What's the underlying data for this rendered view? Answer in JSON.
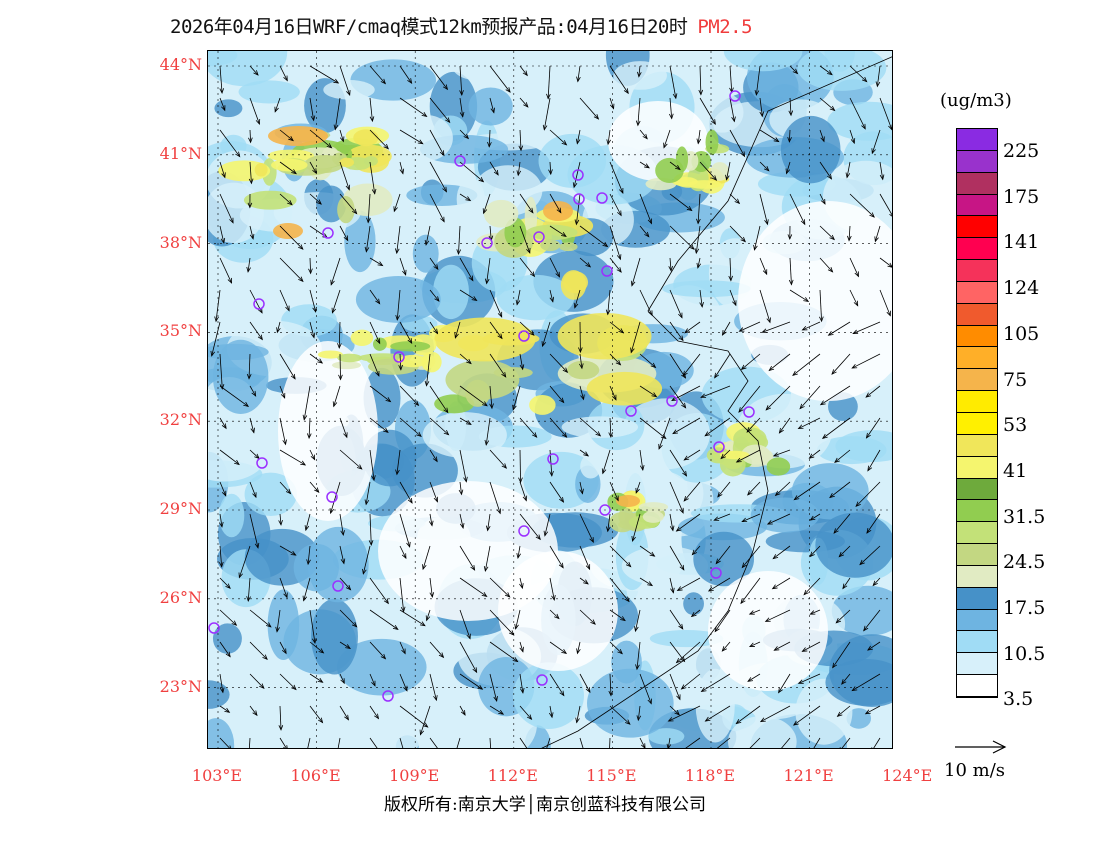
{
  "title": {
    "main": "2026年04月16日WRF/cmaq模式12km预报产品:04月16日20时",
    "pollutant": "PM2.5"
  },
  "lat_labels": [
    "44°N",
    "41°N",
    "38°N",
    "35°N",
    "32°N",
    "29°N",
    "26°N",
    "23°N"
  ],
  "lon_labels": [
    "103°E",
    "106°E",
    "109°E",
    "112°E",
    "115°E",
    "118°E",
    "121°E",
    "124°E"
  ],
  "legend": {
    "unit": "(ug/m3)",
    "colors": [
      "#8a2be2",
      "#9932cc",
      "#b03060",
      "#c71585",
      "#ff0000",
      "#ff0050",
      "#f5325a",
      "#ff6464",
      "#f05a2d",
      "#ff8c00",
      "#ffaf28",
      "#f5b44b",
      "#ffeb00",
      "#fff000",
      "#f0e65a",
      "#f5f56e",
      "#6eaa3c",
      "#91cd50",
      "#c3e178",
      "#c3d782",
      "#e1ebc3",
      "#4691c8",
      "#6eb4e1",
      "#a0dcf5",
      "#d7f0fa",
      "#ffffff"
    ],
    "labels": [
      "225",
      "175",
      "141",
      "124",
      "105",
      "75",
      "53",
      "41",
      "31.5",
      "24.5",
      "17.5",
      "10.5",
      "3.5"
    ]
  },
  "wind_scale": {
    "label": "10 m/s"
  },
  "footer": "版权所有:南京大学│南京创蓝科技有限公司",
  "city_marker_color": "#9b30ff"
}
